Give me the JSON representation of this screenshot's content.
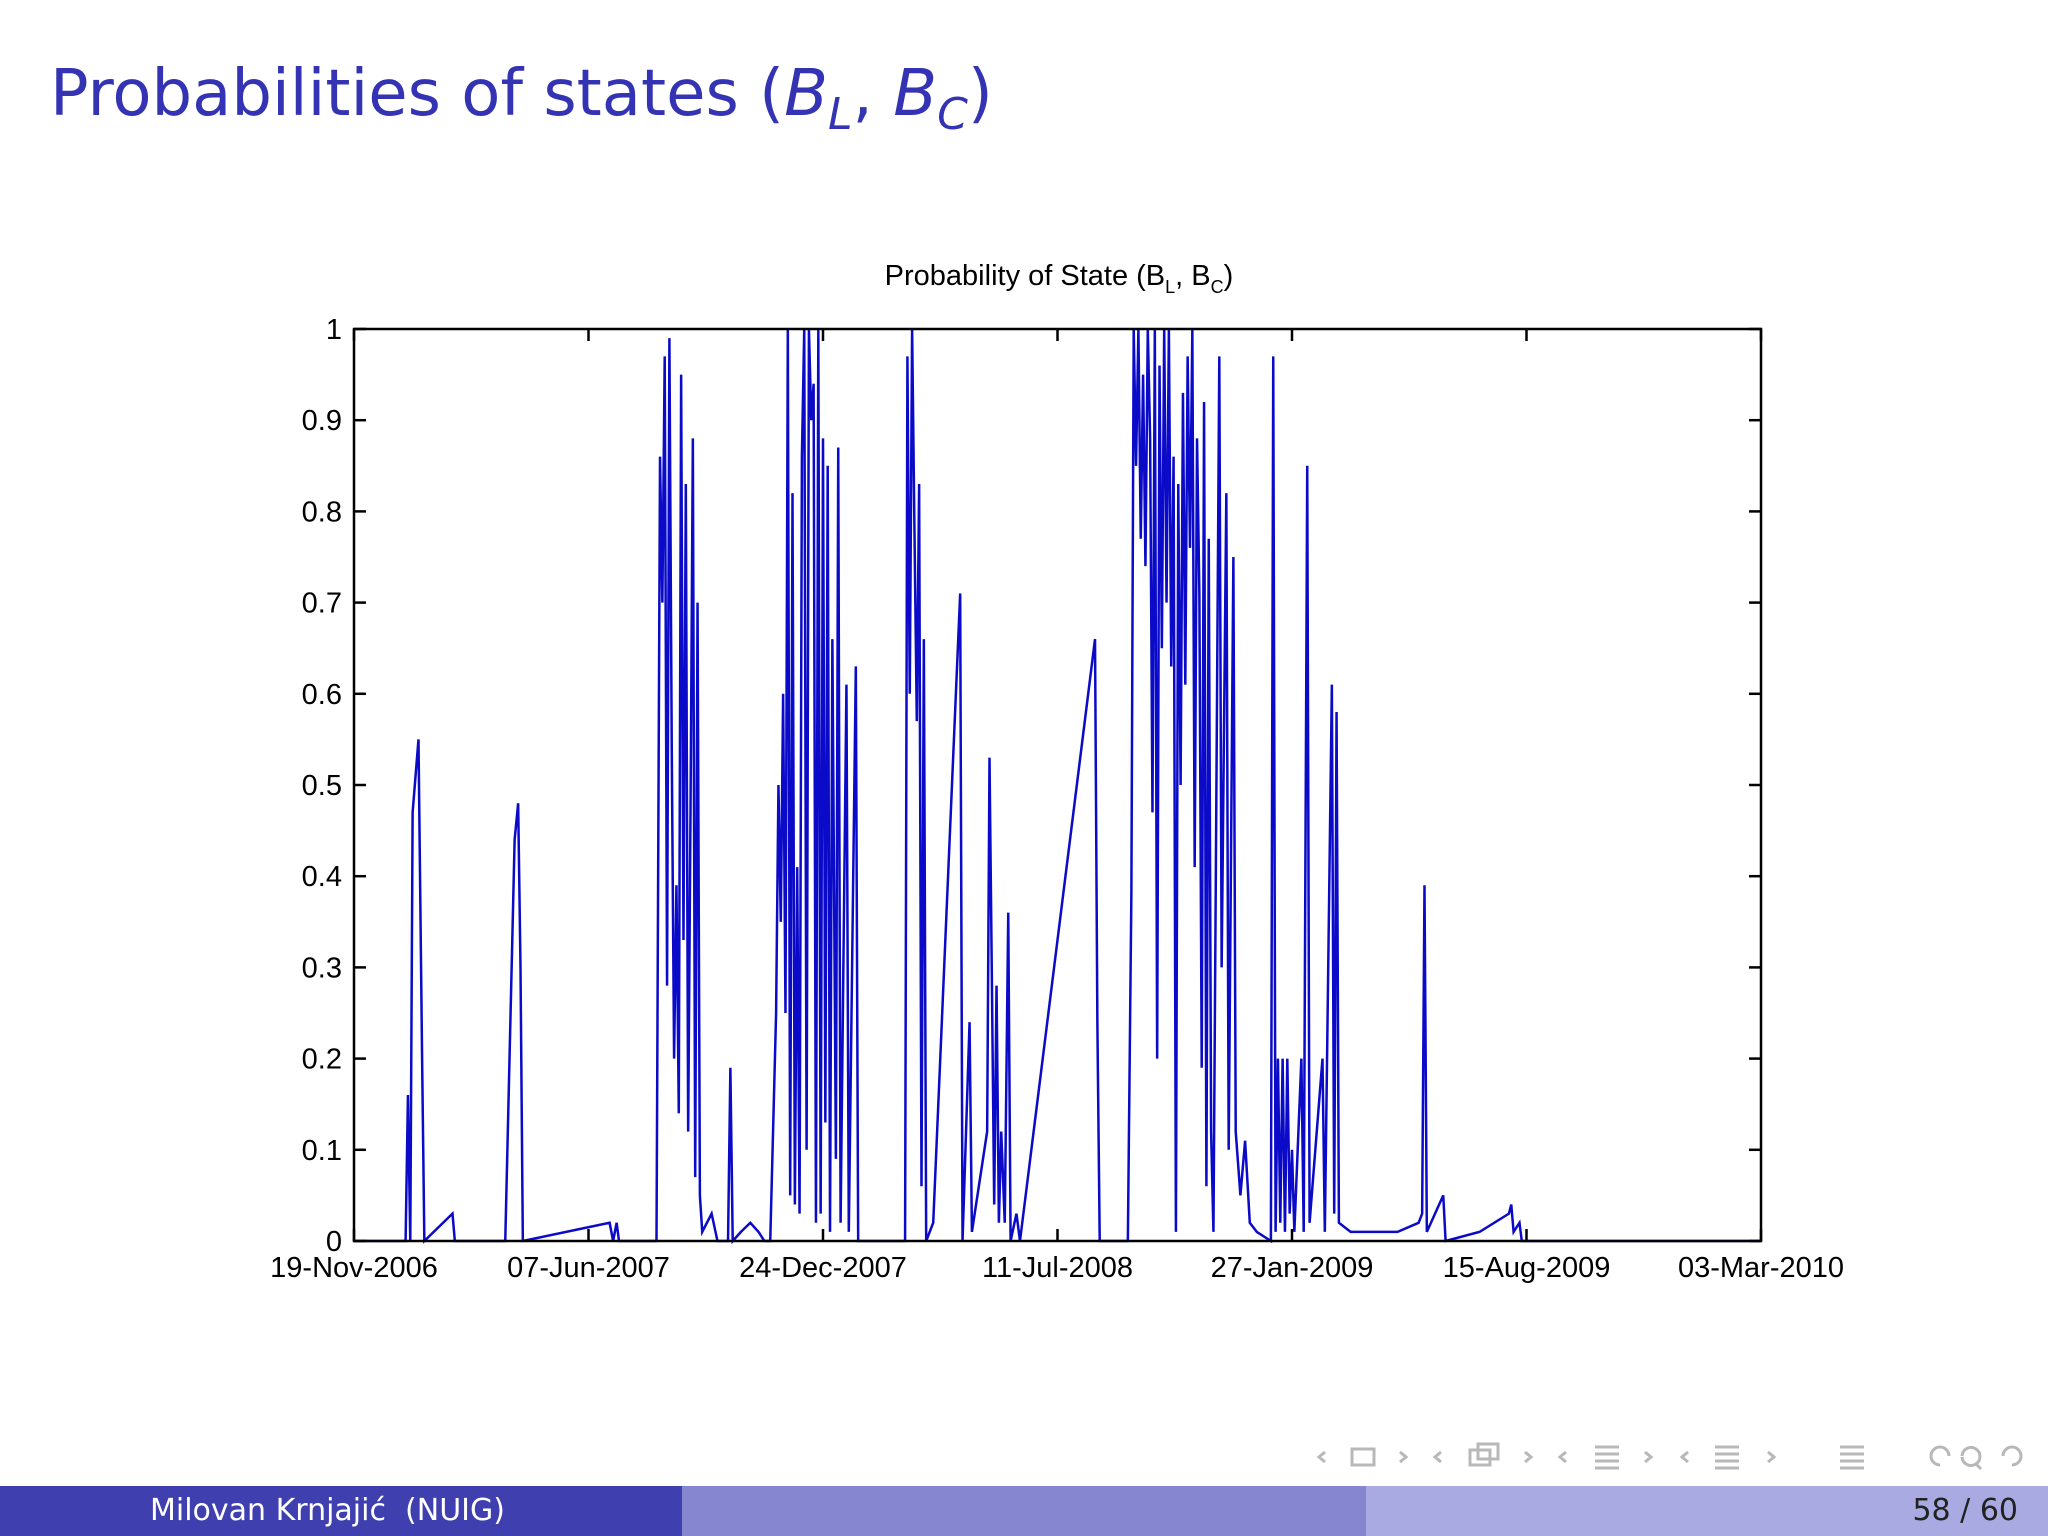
{
  "slide_title": [
    "Probabilities of states (",
    "B",
    "L",
    ", ",
    "B",
    "C",
    ")"
  ],
  "chart_data": {
    "type": "line",
    "title": [
      "Probability of State (B",
      "L",
      ", B",
      "C",
      ")"
    ],
    "color": "#0a0ac8",
    "x": [
      "2006-11-19",
      "2007-01-02",
      "2007-01-04",
      "2007-01-06",
      "2007-01-08",
      "2007-01-13",
      "2007-01-16",
      "2007-01-18",
      "2007-02-11",
      "2007-02-13",
      "2007-03-28",
      "2007-04-05",
      "2007-04-08",
      "2007-04-10",
      "2007-04-12",
      "2007-06-25",
      "2007-06-28",
      "2007-07-01",
      "2007-07-03",
      "2007-08-04",
      "2007-08-07",
      "2007-08-09",
      "2007-08-11",
      "2007-08-13",
      "2007-08-15",
      "2007-08-17",
      "2007-08-19",
      "2007-08-21",
      "2007-08-23",
      "2007-08-25",
      "2007-08-27",
      "2007-08-29",
      "2007-08-31",
      "2007-09-02",
      "2007-09-04",
      "2007-09-06",
      "2007-09-08",
      "2007-09-10",
      "2007-09-12",
      "2007-09-20",
      "2007-09-25",
      "2007-10-04",
      "2007-10-06",
      "2007-10-08",
      "2007-10-15",
      "2007-10-23",
      "2007-10-30",
      "2007-11-04",
      "2007-11-09",
      "2007-11-14",
      "2007-11-16",
      "2007-11-18",
      "2007-11-20",
      "2007-11-22",
      "2007-11-24",
      "2007-11-26",
      "2007-11-28",
      "2007-11-30",
      "2007-12-02",
      "2007-12-04",
      "2007-12-06",
      "2007-12-08",
      "2007-12-10",
      "2007-12-12",
      "2007-12-14",
      "2007-12-16",
      "2007-12-18",
      "2007-12-20",
      "2007-12-22",
      "2007-12-24",
      "2007-12-26",
      "2007-12-28",
      "2007-12-30",
      "2008-01-01",
      "2008-01-04",
      "2008-01-06",
      "2008-01-08",
      "2008-01-13",
      "2008-01-15",
      "2008-01-21",
      "2008-01-23",
      "2008-01-29",
      "2008-03-03",
      "2008-03-05",
      "2008-03-07",
      "2008-03-09",
      "2008-03-11",
      "2008-03-13",
      "2008-03-15",
      "2008-03-17",
      "2008-03-19",
      "2008-03-21",
      "2008-03-27",
      "2008-04-19",
      "2008-04-21",
      "2008-04-27",
      "2008-04-29",
      "2008-05-12",
      "2008-05-14",
      "2008-05-16",
      "2008-05-18",
      "2008-05-20",
      "2008-05-22",
      "2008-05-24",
      "2008-05-27",
      "2008-05-30",
      "2008-06-01",
      "2008-06-06",
      "2008-06-09",
      "2008-08-12",
      "2008-08-14",
      "2008-08-16",
      "2008-09-09",
      "2008-09-12",
      "2008-09-14",
      "2008-09-16",
      "2008-09-18",
      "2008-09-20",
      "2008-09-22",
      "2008-09-24",
      "2008-09-26",
      "2008-09-28",
      "2008-09-30",
      "2008-10-02",
      "2008-10-04",
      "2008-10-06",
      "2008-10-08",
      "2008-10-10",
      "2008-10-12",
      "2008-10-14",
      "2008-10-16",
      "2008-10-18",
      "2008-10-20",
      "2008-10-22",
      "2008-10-24",
      "2008-10-26",
      "2008-10-28",
      "2008-10-30",
      "2008-11-01",
      "2008-11-03",
      "2008-11-05",
      "2008-11-07",
      "2008-11-09",
      "2008-11-11",
      "2008-11-13",
      "2008-11-15",
      "2008-11-17",
      "2008-11-19",
      "2008-11-21",
      "2008-11-26",
      "2008-11-28",
      "2008-12-02",
      "2008-12-04",
      "2008-12-08",
      "2008-12-10",
      "2008-12-14",
      "2008-12-18",
      "2008-12-22",
      "2008-12-28",
      "2009-01-09",
      "2009-01-11",
      "2009-01-13",
      "2009-01-15",
      "2009-01-17",
      "2009-01-19",
      "2009-01-21",
      "2009-01-23",
      "2009-01-25",
      "2009-01-27",
      "2009-01-29",
      "2009-02-04",
      "2009-02-06",
      "2009-02-09",
      "2009-02-11",
      "2009-02-22",
      "2009-02-24",
      "2009-03-02",
      "2009-03-04",
      "2009-03-06",
      "2009-03-08",
      "2009-03-18",
      "2009-04-07",
      "2009-04-27",
      "2009-05-15",
      "2009-05-18",
      "2009-05-20",
      "2009-05-22",
      "2009-06-05",
      "2009-06-07",
      "2009-07-06",
      "2009-07-31",
      "2009-08-02",
      "2009-08-04",
      "2009-08-09",
      "2009-08-11",
      "2010-03-03"
    ],
    "values": [
      0,
      0,
      0.16,
      0,
      0.47,
      0.55,
      0.21,
      0,
      0.03,
      0,
      0,
      0.44,
      0.48,
      0.3,
      0,
      0.02,
      0,
      0.02,
      0,
      0,
      0.86,
      0.7,
      0.97,
      0.28,
      0.99,
      0.54,
      0.2,
      0.39,
      0.14,
      0.95,
      0.33,
      0.83,
      0.12,
      0.47,
      0.88,
      0.07,
      0.7,
      0.05,
      0.01,
      0.03,
      0,
      0,
      0.19,
      0,
      0.01,
      0.02,
      0.01,
      0,
      0,
      0.25,
      0.5,
      0.35,
      0.6,
      0.25,
      1,
      0.05,
      0.82,
      0.04,
      0.41,
      0.03,
      0.86,
      1,
      0.1,
      1,
      0.9,
      0.94,
      0.02,
      1,
      0.03,
      0.88,
      0.13,
      0.85,
      0.01,
      0.66,
      0.09,
      0.87,
      0.02,
      0.61,
      0.01,
      0.63,
      0,
      0,
      0,
      0.97,
      0.6,
      1,
      0.78,
      0.57,
      0.83,
      0.06,
      0.66,
      0,
      0.02,
      0.71,
      0,
      0.24,
      0.01,
      0.12,
      0.53,
      0.29,
      0.04,
      0.28,
      0.02,
      0.12,
      0.02,
      0.36,
      0,
      0.03,
      0,
      0.66,
      0.24,
      0,
      0,
      0.38,
      1,
      0.85,
      1,
      0.77,
      0.95,
      0.74,
      1,
      0.88,
      0.47,
      1,
      0.2,
      0.96,
      0.65,
      1,
      0.7,
      1,
      0.63,
      0.86,
      0.01,
      0.83,
      0.5,
      0.93,
      0.61,
      0.97,
      0.76,
      1,
      0.41,
      0.88,
      0.71,
      0.19,
      0.92,
      0.06,
      0.77,
      0.12,
      0.01,
      0.97,
      0.3,
      0.82,
      0.1,
      0.75,
      0.12,
      0.05,
      0.11,
      0.02,
      0.01,
      0,
      0.97,
      0.01,
      0.2,
      0.02,
      0.2,
      0.01,
      0.2,
      0.03,
      0.1,
      0.01,
      0.2,
      0.01,
      0.85,
      0.02,
      0.2,
      0.01,
      0.61,
      0.03,
      0.58,
      0.02,
      0.01,
      0.01,
      0.01,
      0.02,
      0.03,
      0.39,
      0.01,
      0.05,
      0,
      0.01,
      0.03,
      0.04,
      0.01,
      0.02,
      0,
      0
    ],
    "xlim": [
      "2006-11-19",
      "2010-03-03"
    ],
    "xticks": [
      {
        "value": "2006-11-19",
        "label": "19-Nov-2006"
      },
      {
        "value": "2007-06-07",
        "label": "07-Jun-2007"
      },
      {
        "value": "2007-12-24",
        "label": "24-Dec-2007"
      },
      {
        "value": "2008-07-11",
        "label": "11-Jul-2008"
      },
      {
        "value": "2009-01-27",
        "label": "27-Jan-2009"
      },
      {
        "value": "2009-08-15",
        "label": "15-Aug-2009"
      },
      {
        "value": "2010-03-03",
        "label": "03-Mar-2010"
      }
    ],
    "ylim": [
      0,
      1
    ],
    "yticks": [
      0,
      0.1,
      0.2,
      0.3,
      0.4,
      0.5,
      0.6,
      0.7,
      0.8,
      0.9,
      1
    ],
    "grid": false
  },
  "footer": {
    "author": "Milovan Krnjajić  (NUIG)",
    "page": "58 / 60"
  }
}
